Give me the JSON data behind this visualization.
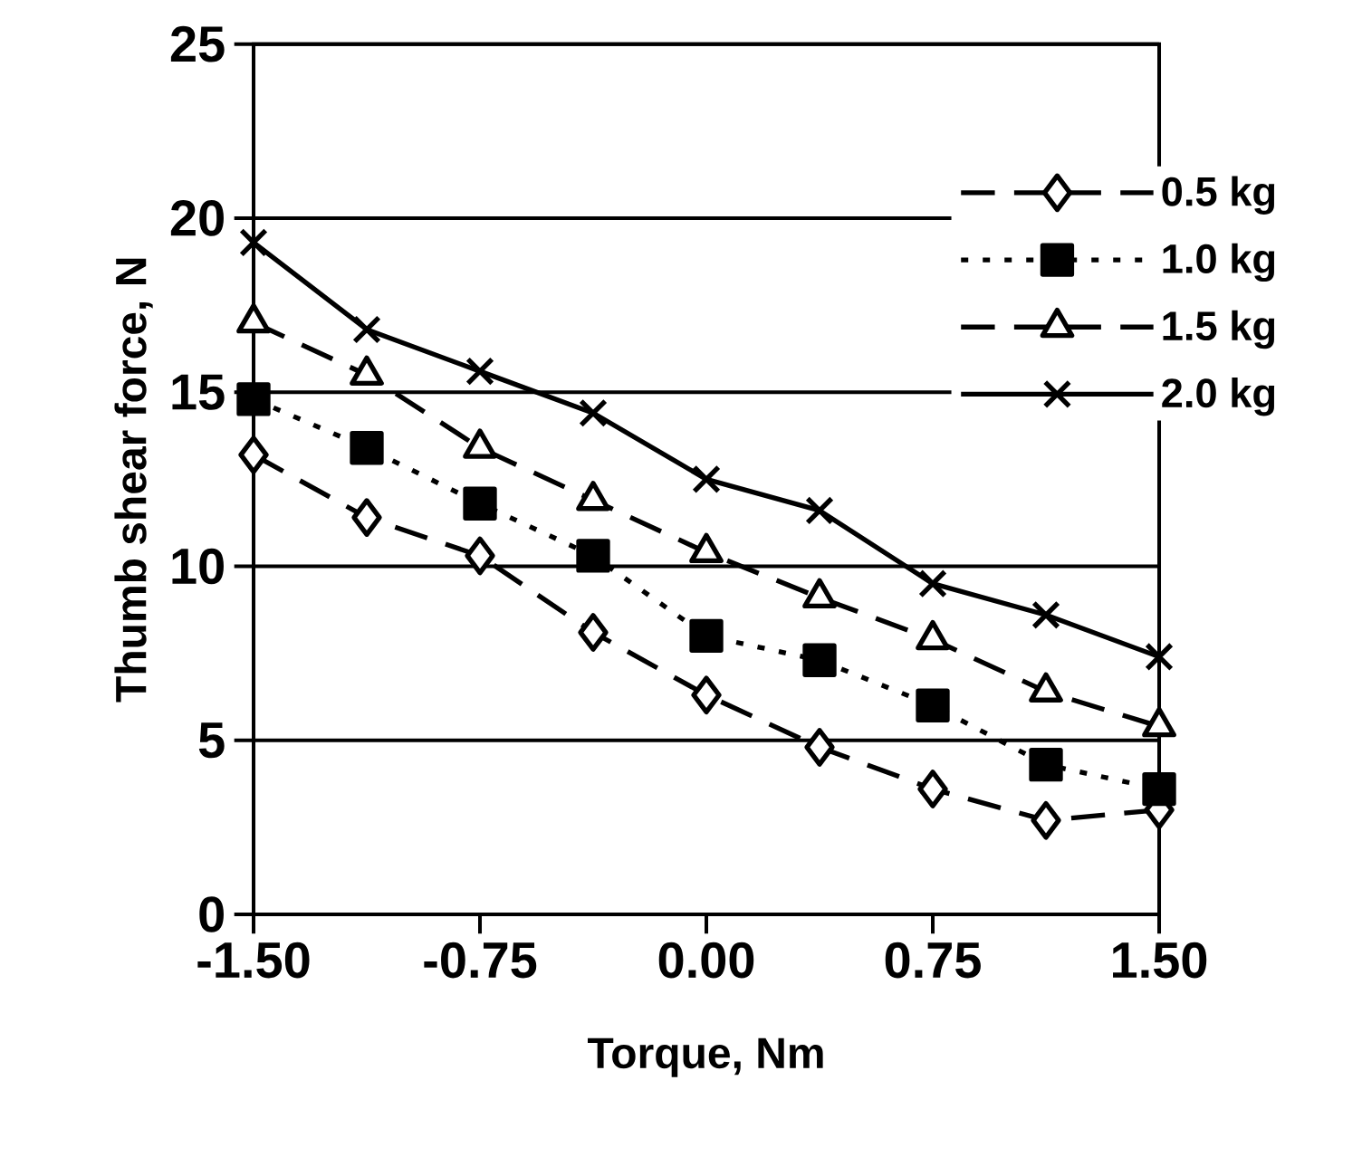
{
  "chart_data": {
    "type": "line",
    "xlabel": "Torque, Nm",
    "ylabel": "Thumb shear force, N",
    "x": [
      -1.5,
      -1.125,
      -0.75,
      -0.375,
      0,
      0.375,
      0.75,
      1.125,
      1.5
    ],
    "xlim": [
      -1.5,
      1.5
    ],
    "xticks": [
      {
        "value": -1.5,
        "label": "-1.50"
      },
      {
        "value": -0.75,
        "label": "-0.75"
      },
      {
        "value": 0,
        "label": "0.00"
      },
      {
        "value": 0.75,
        "label": "0.75"
      },
      {
        "value": 1.5,
        "label": "1.50"
      }
    ],
    "ylim": [
      0,
      25
    ],
    "yticks": [
      0,
      5,
      10,
      15,
      20,
      25
    ],
    "grid": "y",
    "legend": "right",
    "series": [
      {
        "name": "0.5 kg",
        "color": "#000000",
        "marker": "diamond",
        "line_style": "dashed",
        "values": [
          13.2,
          11.4,
          10.3,
          8.1,
          6.3,
          4.8,
          3.6,
          2.7,
          3.0
        ]
      },
      {
        "name": "1.0 kg",
        "color": "#000000",
        "marker": "square",
        "line_style": "dotted",
        "values": [
          14.8,
          13.4,
          11.8,
          10.3,
          8.0,
          7.3,
          6.0,
          4.3,
          3.6
        ]
      },
      {
        "name": "1.5 kg",
        "color": "#000000",
        "marker": "triangle",
        "line_style": "dashed",
        "values": [
          17.0,
          15.5,
          13.4,
          11.9,
          10.4,
          9.1,
          7.9,
          6.4,
          5.4
        ]
      },
      {
        "name": "2.0 kg",
        "color": "#000000",
        "marker": "cross",
        "line_style": "solid",
        "values": [
          19.3,
          16.8,
          15.6,
          14.4,
          12.5,
          11.6,
          9.5,
          8.6,
          7.4
        ]
      }
    ]
  }
}
